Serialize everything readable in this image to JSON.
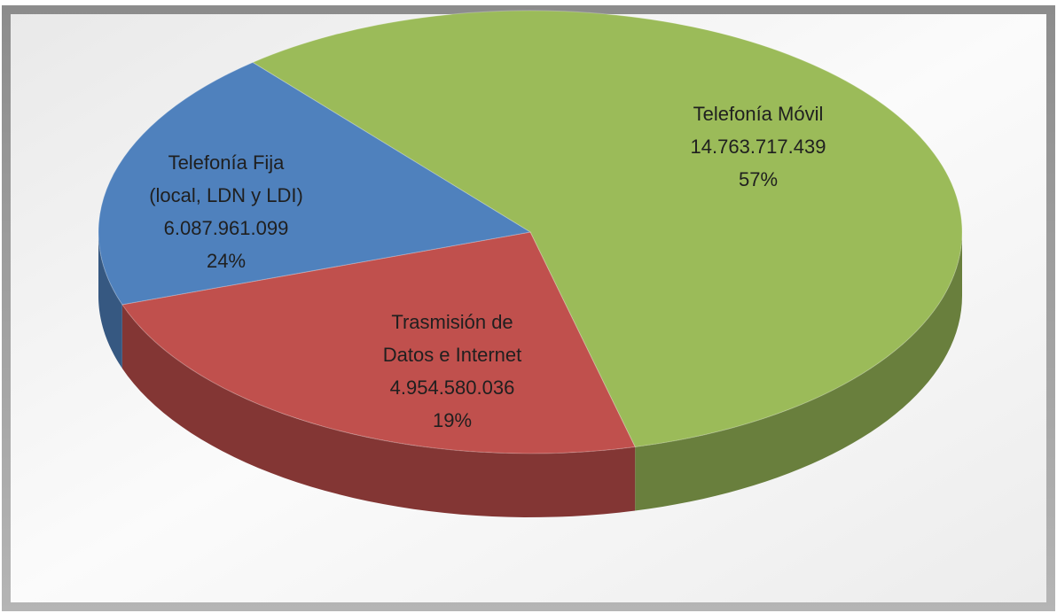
{
  "chart_data": {
    "type": "pie3d",
    "categories": [
      [
        "Telefonía Móvil"
      ],
      [
        "Telefonía Fija",
        "(local, LDN y LDI)"
      ],
      [
        "Trasmisión de",
        "Datos e Internet"
      ]
    ],
    "values": [
      14763717439,
      6087961099,
      4954580036
    ],
    "value_labels": [
      "14.763.717.439",
      "6.087.961.099",
      "4.954.580.036"
    ],
    "percent_labels": [
      "57%",
      "24%",
      "19%"
    ],
    "colors": [
      "#9bbb59",
      "#c0504d",
      "#4f81bd"
    ]
  }
}
